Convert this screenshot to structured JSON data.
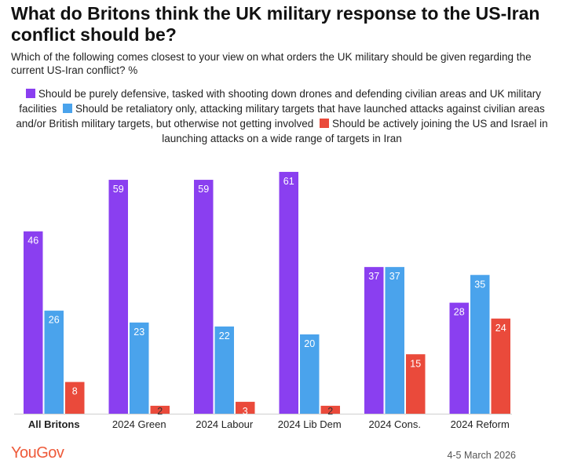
{
  "title": "What do Britons think the UK military response to the US-Iran conflict should be?",
  "subtitle": "Which of the following comes closest to your view on what orders the UK military should be given regarding the current US-Iran conflict? %",
  "brand": "YouGov",
  "date": "4-5 March 2026",
  "colors": {
    "defensive": "#8a3ff0",
    "retaliatory": "#4aa3ec",
    "joining": "#ea4a3b"
  },
  "chart_data": {
    "type": "bar",
    "title": "What do Britons think the UK military response to the US-Iran conflict should be?",
    "xlabel": "",
    "ylabel": "",
    "ylim": [
      0,
      65
    ],
    "grid": false,
    "legend_position": "top",
    "categories": [
      "All Britons",
      "2024 Green",
      "2024 Labour",
      "2024 Lib Dem",
      "2024 Cons.",
      "2024 Reform"
    ],
    "series": [
      {
        "name": "Should be purely defensive, tasked with shooting down drones and defending civilian areas and UK military facilities",
        "color": "#8a3ff0",
        "values": [
          46,
          59,
          59,
          61,
          37,
          28
        ]
      },
      {
        "name": "Should be retaliatory only, attacking military targets that have launched attacks against civilian areas and/or British military targets, but otherwise not getting involved",
        "color": "#4aa3ec",
        "values": [
          26,
          23,
          22,
          20,
          37,
          35
        ]
      },
      {
        "name": "Should be actively joining the US and Israel in launching attacks on a wide range of targets in Iran",
        "color": "#ea4a3b",
        "values": [
          8,
          2,
          3,
          2,
          15,
          24
        ]
      }
    ]
  }
}
